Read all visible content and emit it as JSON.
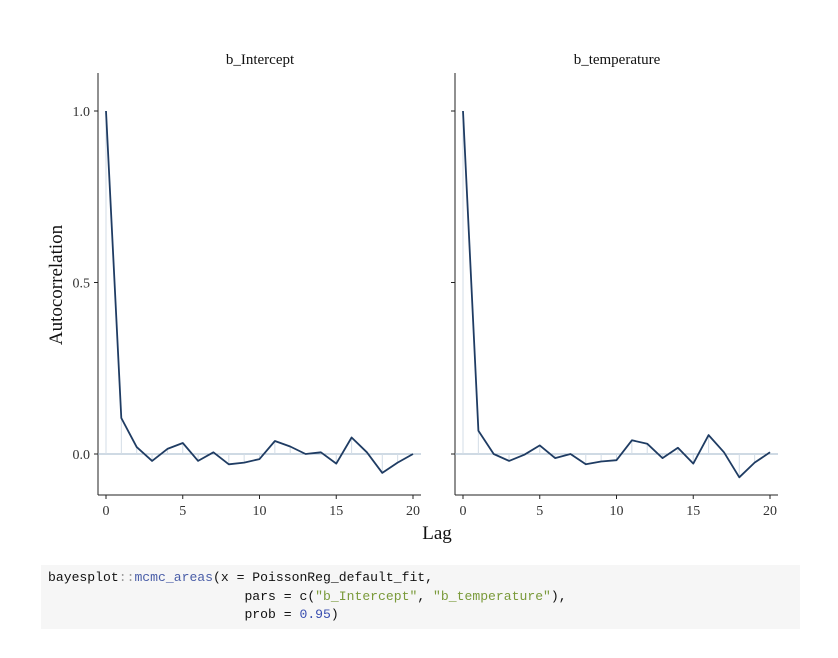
{
  "chart_data": [
    {
      "type": "line",
      "title": "b_Intercept",
      "xlabel": "Lag",
      "ylabel": "Autocorrelation",
      "x": [
        0,
        1,
        2,
        3,
        4,
        5,
        6,
        7,
        8,
        9,
        10,
        11,
        12,
        13,
        14,
        15,
        16,
        17,
        18,
        19,
        20
      ],
      "values": [
        1.0,
        0.105,
        0.02,
        -0.02,
        0.015,
        0.032,
        -0.02,
        0.005,
        -0.03,
        -0.025,
        -0.015,
        0.038,
        0.022,
        0.0,
        0.005,
        -0.028,
        0.048,
        0.005,
        -0.055,
        -0.025,
        0.0
      ],
      "xlim": [
        0,
        20
      ],
      "ylim": [
        -0.1,
        1.0
      ],
      "x_ticks": [
        "0",
        "5",
        "10",
        "15",
        "20"
      ],
      "y_ticks": [
        "0.0",
        "0.5",
        "1.0"
      ],
      "line_color": "#1f3c63"
    },
    {
      "type": "line",
      "title": "b_temperature",
      "xlabel": "Lag",
      "ylabel": "Autocorrelation",
      "x": [
        0,
        1,
        2,
        3,
        4,
        5,
        6,
        7,
        8,
        9,
        10,
        11,
        12,
        13,
        14,
        15,
        16,
        17,
        18,
        19,
        20
      ],
      "values": [
        1.0,
        0.068,
        0.0,
        -0.02,
        -0.002,
        0.025,
        -0.012,
        0.0,
        -0.03,
        -0.022,
        -0.018,
        0.04,
        0.03,
        -0.012,
        0.018,
        -0.028,
        0.055,
        0.005,
        -0.068,
        -0.025,
        0.005
      ],
      "xlim": [
        0,
        20
      ],
      "ylim": [
        -0.1,
        1.0
      ],
      "x_ticks": [
        "0",
        "5",
        "10",
        "15",
        "20"
      ],
      "y_ticks": [
        "0.0",
        "0.5",
        "1.0"
      ],
      "line_color": "#1f3c63"
    }
  ],
  "axis": {
    "x_title": "Lag",
    "y_title": "Autocorrelation"
  },
  "code": {
    "line1": {
      "ns": "bayesplot",
      "op": "::",
      "fn": "mcmc_areas",
      "rest": "(x = PoissonReg_default_fit,"
    },
    "line2": {
      "indent": "                         ",
      "pre": "pars = c(",
      "s1": "\"b_Intercept\"",
      "sep": ", ",
      "s2": "\"b_temperature\"",
      "post": "),"
    },
    "line3": {
      "indent": "                         ",
      "pre": "prob = ",
      "num": "0.95",
      "post": ")"
    }
  }
}
